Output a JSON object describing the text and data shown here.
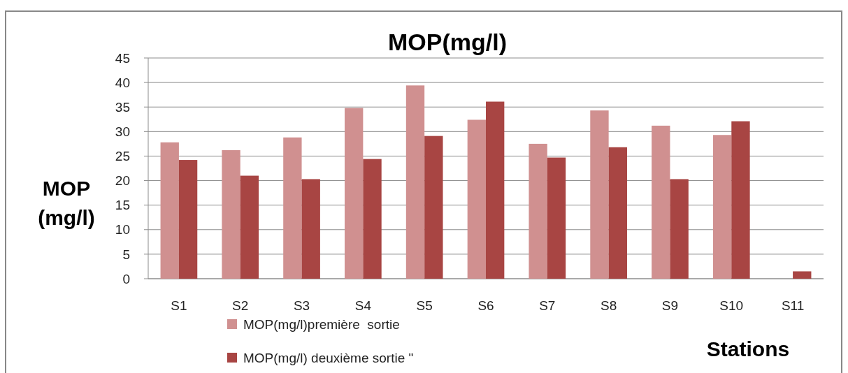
{
  "chart_data": {
    "type": "bar",
    "title": "MOP(mg/l)",
    "xlabel": "Stations",
    "ylabel": "MOP\n(mg/l)",
    "categories": [
      "S1",
      "S2",
      "S3",
      "S4",
      "S5",
      "S6",
      "S7",
      "S8",
      "S9",
      "S10",
      "S11"
    ],
    "series": [
      {
        "name": "MOP(mg/l)première  sortie",
        "color": "#d09090",
        "values": [
          27.8,
          26.2,
          28.8,
          34.8,
          39.4,
          32.4,
          27.5,
          34.3,
          31.2,
          29.3,
          null
        ]
      },
      {
        "name": "MOP(mg/l) deuxième sortie \"",
        "color": "#a84543",
        "values": [
          24.2,
          21.0,
          20.3,
          24.4,
          29.1,
          36.1,
          24.7,
          26.8,
          20.3,
          32.1,
          1.5
        ]
      }
    ],
    "ylim": [
      0,
      45
    ],
    "yticks": [
      0,
      5,
      10,
      15,
      20,
      25,
      30,
      35,
      40,
      45
    ],
    "grid": "y",
    "legend": "bottom"
  }
}
